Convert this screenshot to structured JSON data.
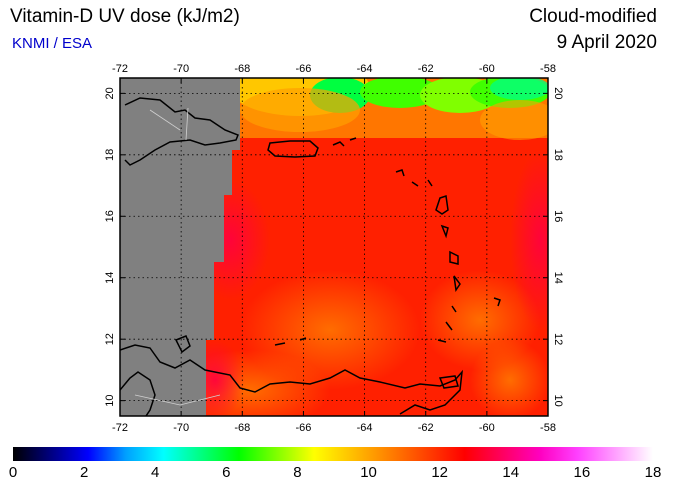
{
  "header": {
    "title": "Vitamin-D UV dose (kJ/m2)",
    "source": "KNMI / ESA",
    "product": "Cloud-modified",
    "date": "9 April 2020"
  },
  "colors": {
    "source_text": "#0000cc",
    "land_nodata": "#808080",
    "frame": "#000000"
  },
  "map": {
    "lon_range": [
      -72,
      -58
    ],
    "lat_range": [
      9.5,
      20.5
    ],
    "lon_ticks": [
      "-72",
      "-70",
      "-68",
      "-66",
      "-64",
      "-62",
      "-60",
      "-58"
    ],
    "lat_ticks": [
      "10",
      "12",
      "14",
      "16",
      "18",
      "20"
    ],
    "grid": true
  },
  "colorbar": {
    "min": 0,
    "max": 18,
    "ticks": [
      "0",
      "2",
      "4",
      "6",
      "8",
      "10",
      "12",
      "14",
      "16",
      "18"
    ],
    "stops": [
      "#000000",
      "#000080",
      "#0000ff",
      "#00a0ff",
      "#00ffff",
      "#00ff80",
      "#00ff00",
      "#80ff00",
      "#ffff00",
      "#ffc000",
      "#ff8000",
      "#ff4000",
      "#ff0000",
      "#ff0060",
      "#ff00c0",
      "#ff40ff",
      "#ffa0ff",
      "#ffffff"
    ]
  }
}
